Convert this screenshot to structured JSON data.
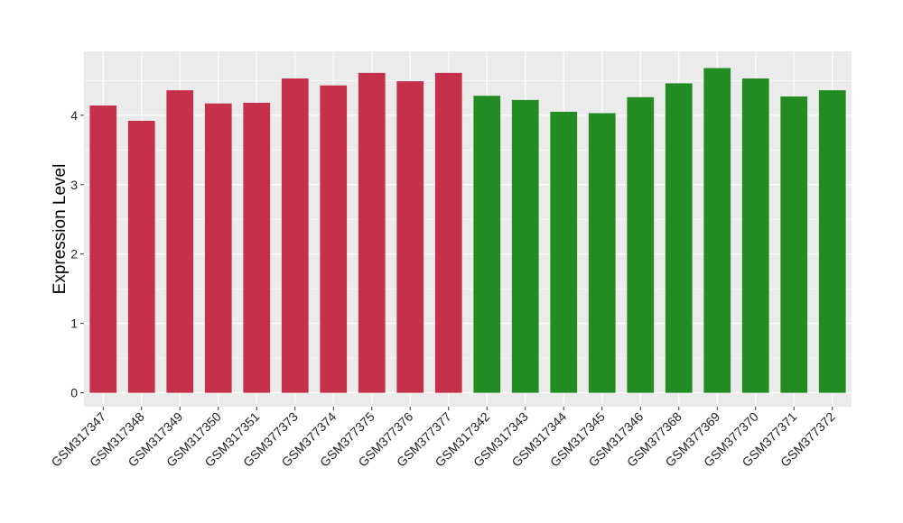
{
  "chart_data": {
    "type": "bar",
    "title": "",
    "xlabel": "",
    "ylabel": "Expression Level",
    "ylim": [
      -0.2,
      4.92
    ],
    "yticks": [
      0,
      1,
      2,
      3,
      4
    ],
    "grid": true,
    "legend": "none",
    "background": "#ebebeb",
    "colors": {
      "group1": "#c5304a",
      "group2": "#228b22"
    },
    "categories": [
      "GSM317347",
      "GSM317348",
      "GSM317349",
      "GSM317350",
      "GSM317351",
      "GSM377373",
      "GSM377374",
      "GSM377375",
      "GSM377376",
      "GSM377377",
      "GSM317342",
      "GSM317343",
      "GSM317344",
      "GSM317345",
      "GSM317346",
      "GSM377368",
      "GSM377369",
      "GSM377370",
      "GSM377371",
      "GSM377372"
    ],
    "values": [
      4.14,
      3.92,
      4.36,
      4.17,
      4.18,
      4.53,
      4.43,
      4.61,
      4.49,
      4.61,
      4.28,
      4.22,
      4.05,
      4.03,
      4.26,
      4.46,
      4.68,
      4.53,
      4.27,
      4.36
    ],
    "bar_groups": [
      "group1",
      "group1",
      "group1",
      "group1",
      "group1",
      "group1",
      "group1",
      "group1",
      "group1",
      "group1",
      "group2",
      "group2",
      "group2",
      "group2",
      "group2",
      "group2",
      "group2",
      "group2",
      "group2",
      "group2"
    ]
  }
}
